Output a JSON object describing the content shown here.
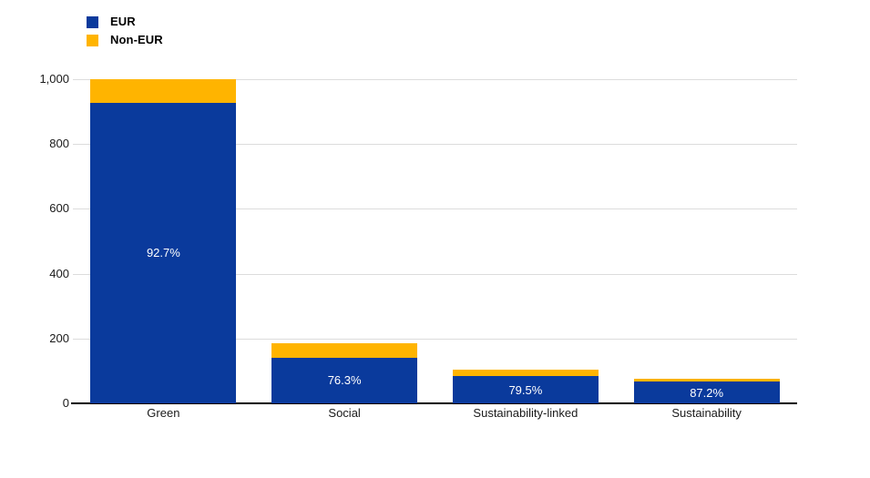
{
  "chart_data": {
    "type": "bar",
    "stacked": true,
    "title": "",
    "xlabel": "",
    "ylabel": "",
    "categories": [
      "Green",
      "Social",
      "Sustainability-linked",
      "Sustainability"
    ],
    "series": [
      {
        "name": "EUR",
        "color": "#0a3a9c",
        "values": [
          927,
          141,
          83.5,
          66.3
        ]
      },
      {
        "name": "Non-EUR",
        "color": "#ffb400",
        "values": [
          73,
          44,
          21.5,
          9.7
        ]
      }
    ],
    "bar_labels": [
      "92.7%",
      "76.3%",
      "79.5%",
      "87.2%"
    ],
    "ylim": [
      0,
      1000
    ],
    "ytick_interval": 200,
    "yticks": [
      "0",
      "200",
      "400",
      "600",
      "800",
      "1,000"
    ],
    "grid": true,
    "legend_position": "top-left",
    "colors": {
      "gridline": "#dcdcdc",
      "axis": "#000000",
      "background": "#ffffff",
      "bar_label_text": "#ffffff"
    }
  }
}
